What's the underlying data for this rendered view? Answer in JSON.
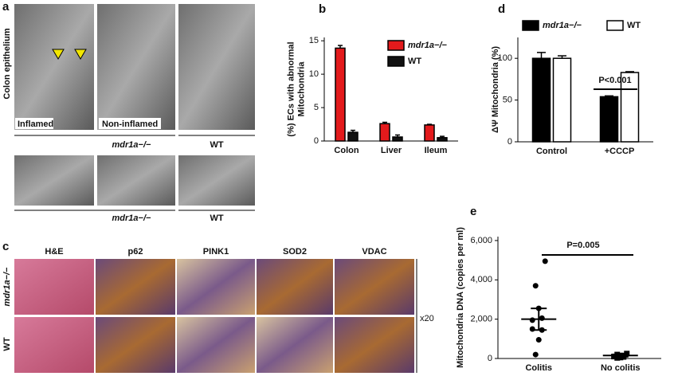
{
  "figure": {
    "panels": [
      "a",
      "b",
      "c",
      "d",
      "e"
    ],
    "a": {
      "side_label": "Colon epithelium",
      "image_labels": [
        "Inflamed",
        "Non-inflamed"
      ],
      "group_labels": [
        "mdr1a−/−",
        "WT",
        "mdr1a−/−",
        "WT"
      ]
    },
    "c": {
      "columns": [
        "H&E",
        "p62",
        "PINK1",
        "SOD2",
        "VDAC"
      ],
      "rows": [
        "mdr1a−/−",
        "WT"
      ],
      "magnification": "x20"
    }
  },
  "chart_data": [
    {
      "type": "bar",
      "y_label": [
        "(%) ECs with abnormal",
        "Mitochondria"
      ],
      "categories": [
        "Colon",
        "Liver",
        "Ileum"
      ],
      "series": [
        {
          "name": "mdr1a−/−",
          "color": "#e31a1c",
          "values": [
            13.9,
            2.6,
            2.4
          ],
          "errors": [
            0.4,
            0.2,
            0.1
          ]
        },
        {
          "name": "WT",
          "color": "#111111",
          "values": [
            1.3,
            0.6,
            0.5
          ],
          "errors": [
            0.3,
            0.3,
            0.2
          ]
        }
      ],
      "ylim": [
        0,
        15.5
      ],
      "yticks": [
        0,
        5,
        10,
        15
      ],
      "legend": "upper right"
    },
    {
      "type": "bar",
      "y_label": [
        "ΔΨ Mitochondria (%)"
      ],
      "categories": [
        "Control",
        "+CCCP"
      ],
      "series": [
        {
          "name": "mdr1a−/−",
          "color": "#000000",
          "values": [
            100,
            54
          ],
          "errors": [
            7,
            1
          ]
        },
        {
          "name": "WT",
          "color": "#ffffff",
          "values": [
            100,
            83
          ],
          "errors": [
            3,
            1
          ]
        }
      ],
      "ylim": [
        0,
        125
      ],
      "yticks": [
        0,
        50,
        100
      ],
      "annotation": "P<0.001",
      "legend": "top"
    },
    {
      "type": "scatter",
      "y_label": [
        "Mitochondria DNA (copies per ml)"
      ],
      "categories": [
        "Colitis",
        "No colitis"
      ],
      "groups": [
        {
          "values": [
            4950,
            3700,
            2550,
            2050,
            1950,
            1500,
            1450,
            950,
            200
          ],
          "mean": 2000,
          "sem": 550,
          "marker": "circle"
        },
        {
          "values": [
            250,
            200,
            150,
            150,
            100,
            100,
            80,
            50,
            30
          ],
          "mean": 150,
          "sem": 60,
          "marker": "square"
        }
      ],
      "ylim": [
        0,
        6200
      ],
      "yticks": [
        0,
        {
          "value": 2000,
          "label": "2,000"
        },
        {
          "value": 4000,
          "label": "4,000"
        },
        {
          "value": 6000,
          "label": "6,000"
        }
      ],
      "annotation": "P=0.005"
    }
  ]
}
